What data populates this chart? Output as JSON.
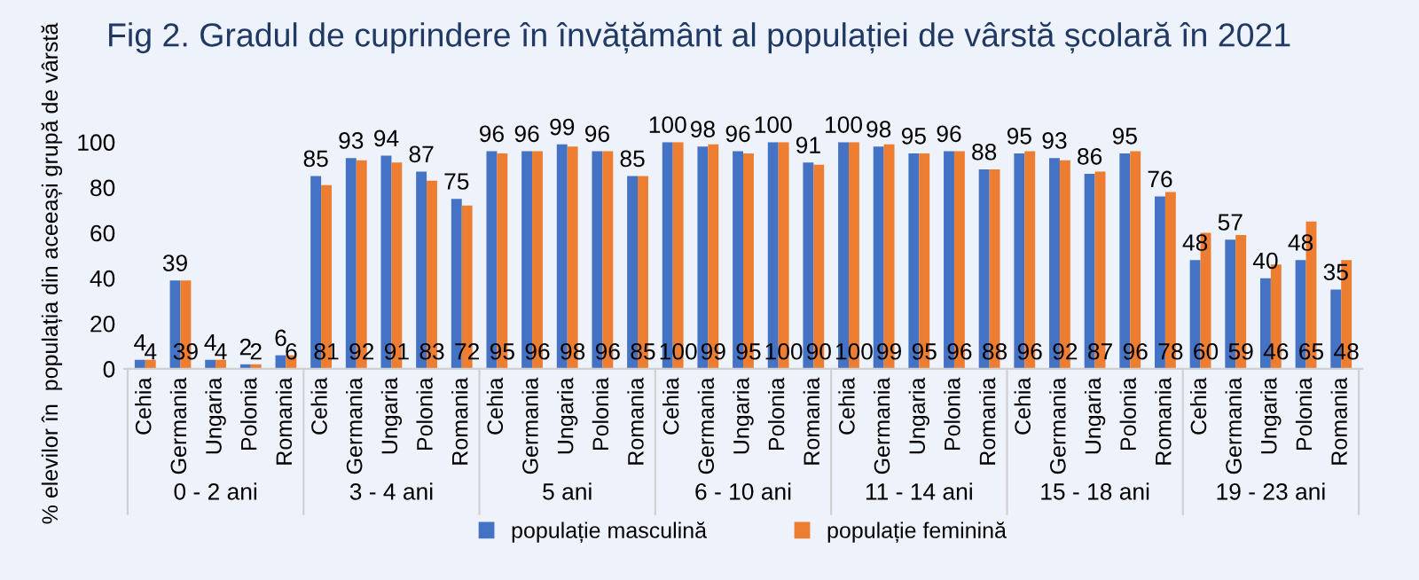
{
  "chart_data": {
    "type": "bar",
    "title": "Fig 2. Gradul de cuprindere în învățământ al populației de vârstă școlară în 2021",
    "ylabel": "% elevilor în  populația din aceeași grupă de vârstă",
    "categories": [
      "Cehia",
      "Germania",
      "Ungaria",
      "Polonia",
      "Romania",
      "Cehia",
      "Germania",
      "Ungaria",
      "Polonia",
      "Romania",
      "Cehia",
      "Germania",
      "Ungaria",
      "Polonia",
      "Romania",
      "Cehia",
      "Germania",
      "Ungaria",
      "Polonia",
      "Romania",
      "Cehia",
      "Germania",
      "Ungaria",
      "Polonia",
      "Romania",
      "Cehia",
      "Germania",
      "Ungaria",
      "Polonia",
      "Romania",
      "Cehia",
      "Germania",
      "Ungaria",
      "Polonia",
      "Romania"
    ],
    "annotations": [
      "0 - 2 ani",
      "3 - 4 ani",
      "5 ani",
      "6 - 10 ani",
      "11 - 14 ani",
      "15 - 18 ani",
      "19 - 23 ani"
    ],
    "series": [
      {
        "name": "populație masculină",
        "color": "#4472c4",
        "values": [
          4,
          39,
          4,
          2,
          6,
          85,
          93,
          94,
          87,
          75,
          96,
          96,
          99,
          96,
          85,
          100,
          98,
          96,
          100,
          91,
          100,
          98,
          95,
          96,
          88,
          95,
          93,
          86,
          95,
          76,
          48,
          57,
          40,
          48,
          35
        ]
      },
      {
        "name": "populație feminină",
        "color": "#ed7d31",
        "values": [
          4,
          39,
          4,
          2,
          6,
          81,
          92,
          91,
          83,
          72,
          95,
          96,
          98,
          96,
          85,
          100,
          99,
          95,
          100,
          90,
          100,
          99,
          95,
          96,
          88,
          96,
          92,
          87,
          96,
          78,
          60,
          59,
          46,
          65,
          48
        ]
      }
    ],
    "ylim": [
      0,
      100
    ],
    "yticks": [
      0,
      20,
      40,
      60,
      80,
      100
    ],
    "data_labels": true,
    "grid": false,
    "legend": "bottom"
  }
}
